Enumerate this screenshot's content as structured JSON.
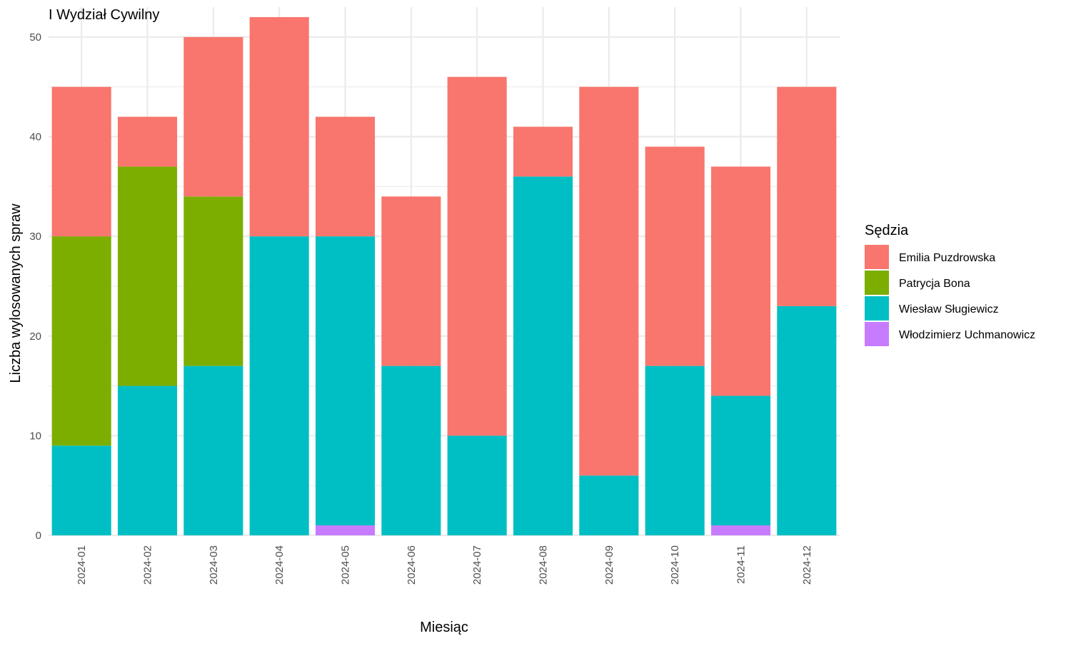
{
  "chart_data": {
    "type": "bar",
    "stacked": true,
    "title": "I Wydział Cywilny",
    "xlabel": "Miesiąc",
    "ylabel": "Liczba wylosowanych spraw",
    "ylim": [
      0,
      53
    ],
    "yticks": [
      0,
      10,
      20,
      30,
      40,
      50
    ],
    "grid": true,
    "legend_position": "right",
    "legend_title": "Sędzia",
    "categories": [
      "2024-01",
      "2024-02",
      "2024-03",
      "2024-04",
      "2024-05",
      "2024-06",
      "2024-07",
      "2024-08",
      "2024-09",
      "2024-10",
      "2024-11",
      "2024-12"
    ],
    "series": [
      {
        "name": "Emilia Puzdrowska",
        "color": "#F8766D",
        "values": [
          15,
          5,
          16,
          22,
          12,
          17,
          36,
          5,
          39,
          22,
          23,
          22
        ]
      },
      {
        "name": "Patrycja Bona",
        "color": "#7CAE00",
        "values": [
          21,
          22,
          17,
          0,
          0,
          0,
          0,
          0,
          0,
          0,
          0,
          0
        ]
      },
      {
        "name": "Wiesław Sługiewicz",
        "color": "#00BFC4",
        "values": [
          9,
          15,
          17,
          30,
          29,
          17,
          10,
          36,
          6,
          17,
          13,
          23
        ]
      },
      {
        "name": "Włodzimierz Uchmanowicz",
        "color": "#C77CFF",
        "values": [
          0,
          0,
          0,
          0,
          1,
          0,
          0,
          0,
          0,
          0,
          1,
          0
        ]
      }
    ],
    "stack_order_bottom_to_top": [
      "Włodzimierz Uchmanowicz",
      "Wiesław Sługiewicz",
      "Patrycja Bona",
      "Emilia Puzdrowska"
    ]
  }
}
